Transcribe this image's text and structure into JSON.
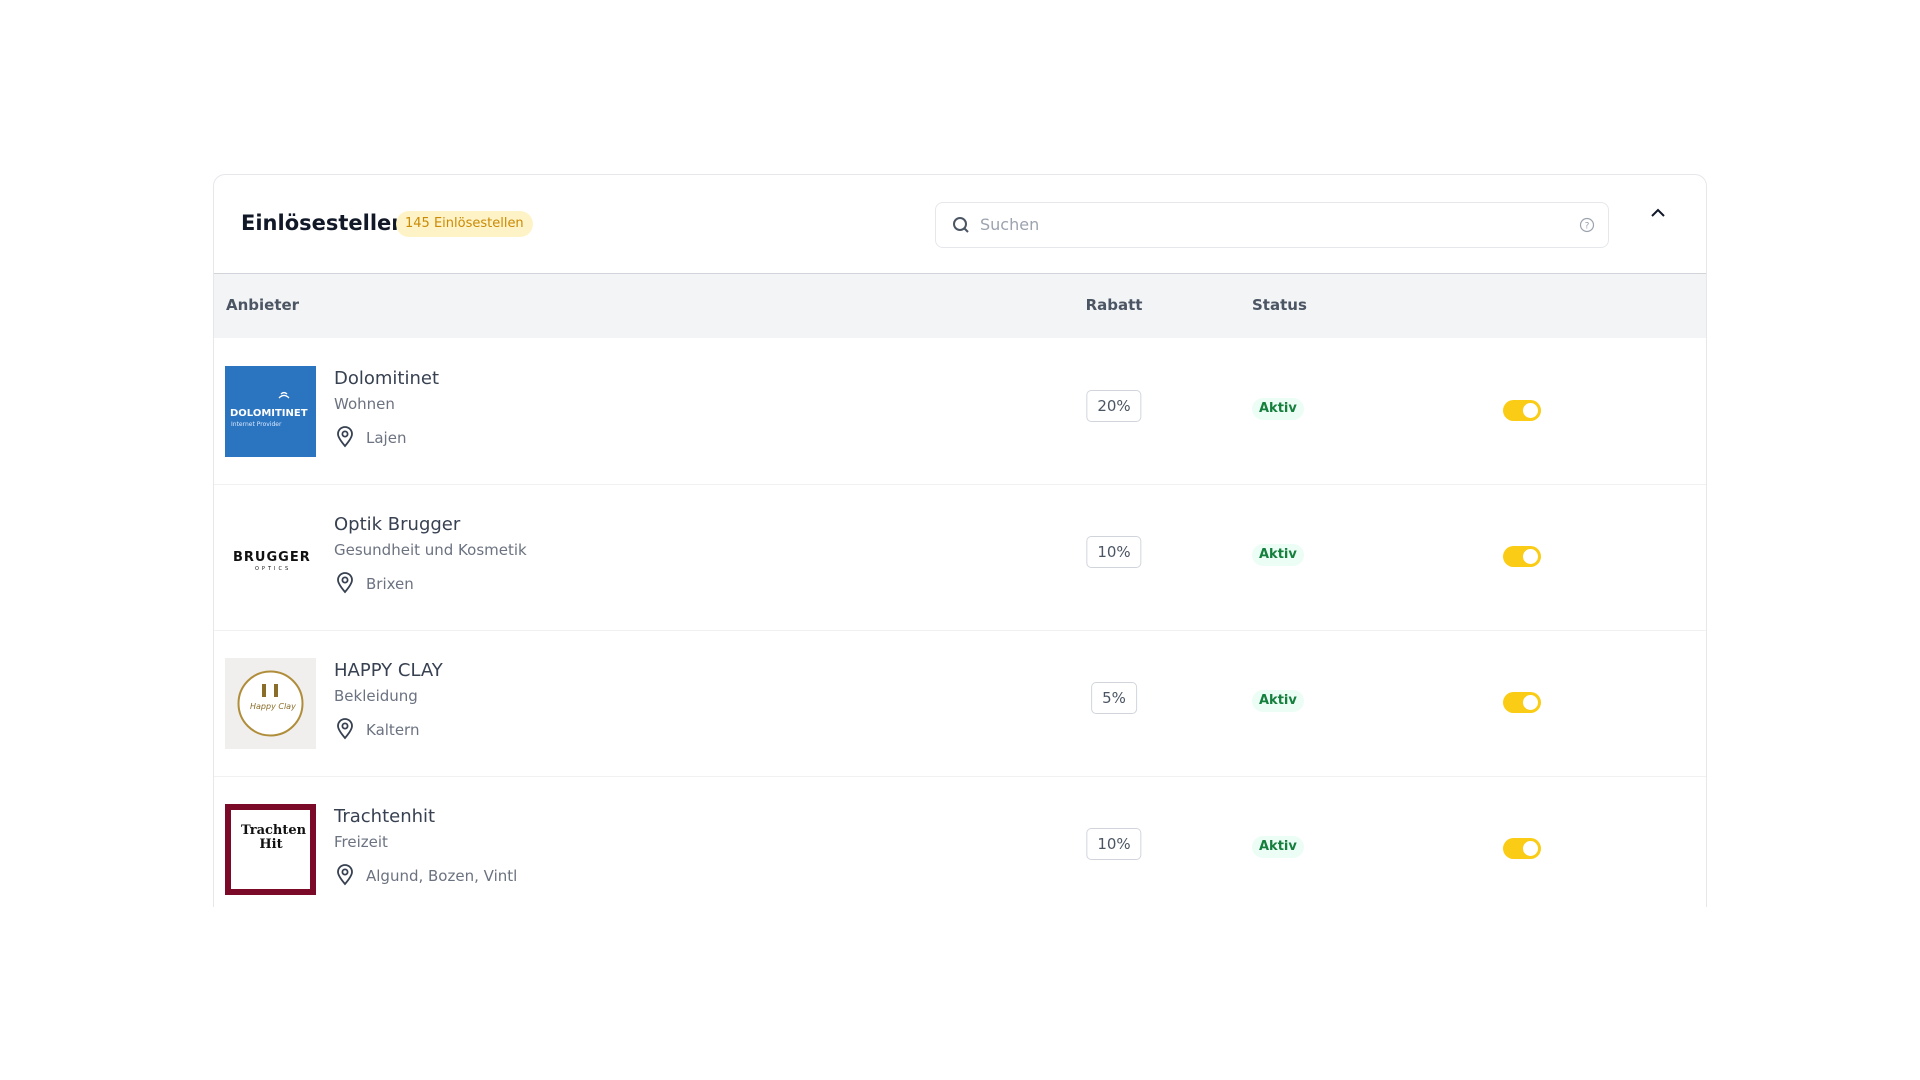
{
  "header": {
    "title": "Einlösestellen",
    "badge": "145 Einlösestellen",
    "search_placeholder": "Suchen"
  },
  "table": {
    "columns": [
      "Anbieter",
      "Rabatt",
      "Status"
    ],
    "rows": [
      {
        "name": "Dolomitinet",
        "category": "Wohnen",
        "location": "Lajen",
        "discount": "20%",
        "status": "Aktiv",
        "logo": "dolomitinet",
        "logo_text": [
          "DOLOMITINET",
          "Internet Provider"
        ]
      },
      {
        "name": "Optik Brugger",
        "category": "Gesundheit und Kosmetik",
        "location": "Brixen",
        "discount": "10%",
        "status": "Aktiv",
        "logo": "brugger",
        "logo_text": [
          "BRUGGER",
          "OPTICS"
        ]
      },
      {
        "name": "HAPPY CLAY",
        "category": "Bekleidung",
        "location": "Kaltern",
        "discount": "5%",
        "status": "Aktiv",
        "logo": "happyclay",
        "logo_text": [
          "Happy Clay"
        ]
      },
      {
        "name": "Trachtenhit",
        "category": "Freizeit",
        "location": "Algund, Bozen, Vintl",
        "discount": "10%",
        "status": "Aktiv",
        "logo": "trachtenhit",
        "logo_text": [
          "Trachten Hit"
        ]
      }
    ]
  }
}
